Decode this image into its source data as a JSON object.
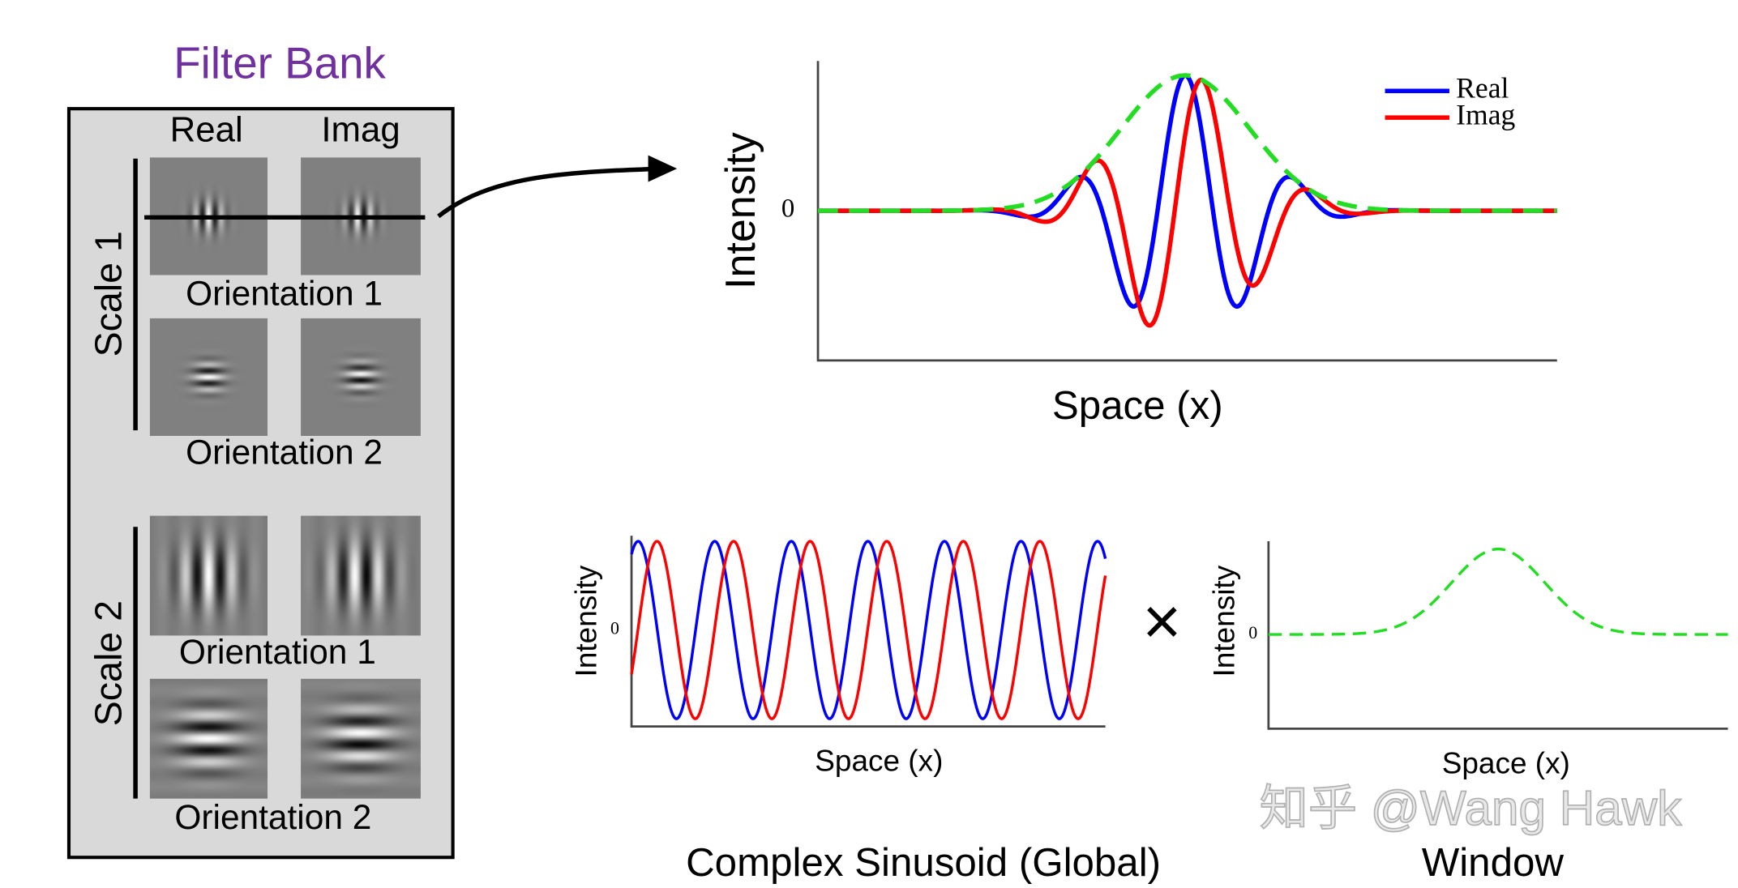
{
  "filter_bank": {
    "title": "Filter Bank",
    "columns": [
      "Real",
      "Imag"
    ],
    "scales": [
      {
        "label": "Scale 1",
        "orientations": [
          "Orientation 1",
          "Orientation 2"
        ]
      },
      {
        "label": "Scale 2",
        "orientations": [
          "Orientation 1",
          "Orientation 2"
        ]
      }
    ]
  },
  "main_plot": {
    "y_label": "Intensity",
    "y_tick": "0",
    "x_label": "Space (x)",
    "legend": [
      "Real",
      "Imag"
    ]
  },
  "sinusoid_plot": {
    "y_label": "Intensity",
    "y_tick": "0",
    "x_label": "Space (x)",
    "caption": "Complex Sinusoid (Global)"
  },
  "operator": "×",
  "window_plot": {
    "y_label": "Intensity",
    "y_tick": "0",
    "x_label": "Space (x)",
    "caption": "Window"
  },
  "watermark": "知乎 @Wang Hawk"
}
